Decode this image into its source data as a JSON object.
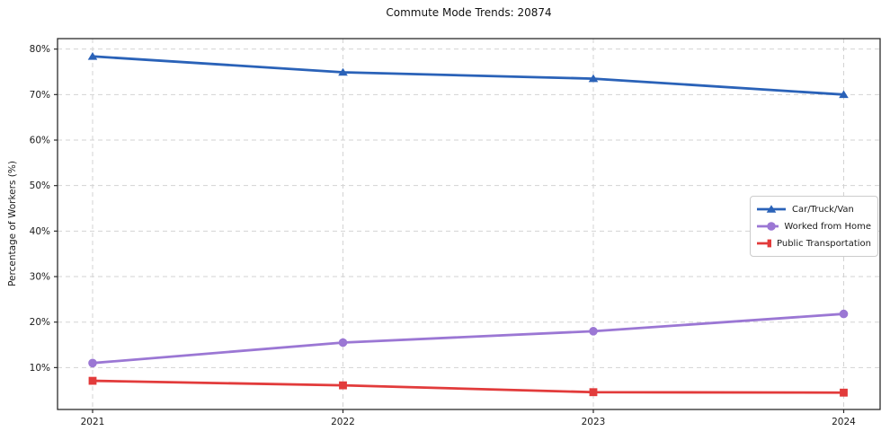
{
  "figure": {
    "title": "Commute Mode Trends: 20874",
    "ylabel": "Percentage of Workers (%)"
  },
  "chart_data": {
    "type": "line",
    "title": "Commute Mode Trends: 20874",
    "xlabel": "",
    "ylabel": "Percentage of Workers (%)",
    "categories": [
      "2021",
      "2022",
      "2023",
      "2024"
    ],
    "yticks": [
      10,
      20,
      30,
      40,
      50,
      60,
      70,
      80
    ],
    "ytick_suffix": "%",
    "ylim": [
      0.8,
      82.3
    ],
    "grid": "dashed, both axes",
    "legend_position": "center right inside plot",
    "series": [
      {
        "name": "Car/Truck/Van",
        "color": "#2a62b8",
        "marker": "triangle",
        "values": [
          78.4,
          74.9,
          73.5,
          70.0
        ]
      },
      {
        "name": "Worked from Home",
        "color": "#9b77d4",
        "marker": "circle",
        "values": [
          11.0,
          15.5,
          18.0,
          21.8
        ]
      },
      {
        "name": "Public Transportation",
        "color": "#e23b3b",
        "marker": "square",
        "values": [
          7.1,
          6.1,
          4.6,
          4.5
        ]
      }
    ],
    "colors": {
      "grid": "#d3d3d3",
      "spine": "#2b2b2b",
      "tick_text": "#1a1a1a",
      "background": "#ffffff"
    }
  }
}
